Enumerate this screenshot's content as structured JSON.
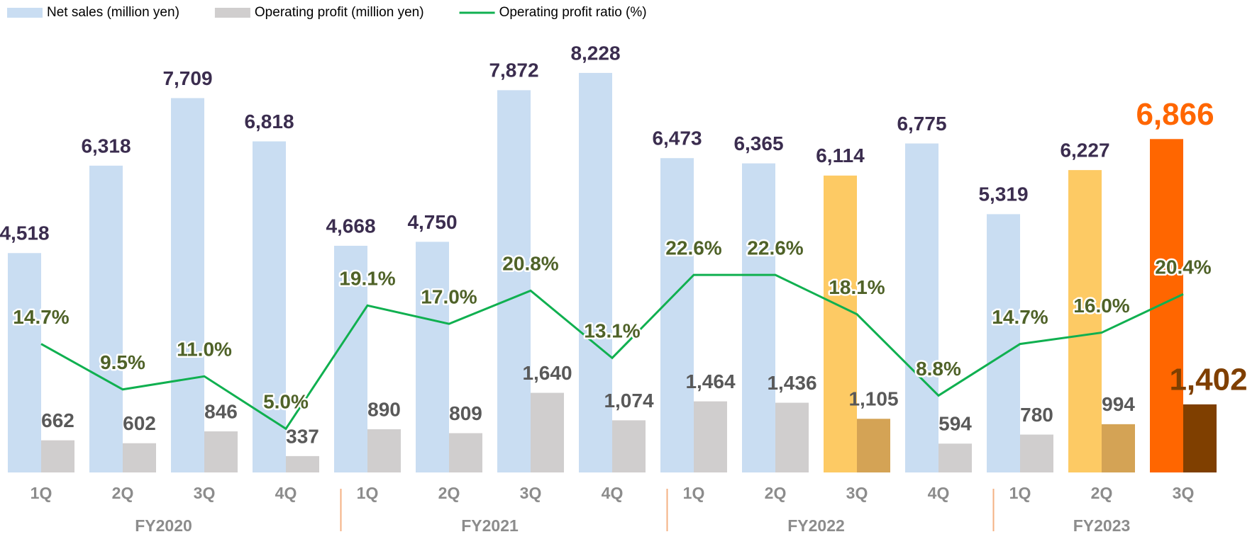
{
  "chart_data": {
    "type": "bar-line",
    "categories": [
      "1Q",
      "2Q",
      "3Q",
      "4Q",
      "1Q",
      "2Q",
      "3Q",
      "4Q",
      "1Q",
      "2Q",
      "3Q",
      "4Q",
      "1Q",
      "2Q",
      "3Q"
    ],
    "groups": [
      {
        "name": "FY2020",
        "size": 4
      },
      {
        "name": "FY2021",
        "size": 4
      },
      {
        "name": "FY2022",
        "size": 4
      },
      {
        "name": "FY2023",
        "size": 3
      }
    ],
    "ylim": [
      0,
      9000
    ],
    "y2lim": [
      0,
      50
    ],
    "series": [
      {
        "name": "Net sales (million yen)",
        "type": "bar",
        "color": "#c9ddf2",
        "colors": [
          "#c9ddf2",
          "#c9ddf2",
          "#c9ddf2",
          "#c9ddf2",
          "#c9ddf2",
          "#c9ddf2",
          "#c9ddf2",
          "#c9ddf2",
          "#c9ddf2",
          "#c9ddf2",
          "#fdca64",
          "#c9ddf2",
          "#c9ddf2",
          "#fdca64",
          "#ff6600"
        ],
        "label_colors": [
          "#3b2d4f",
          "#3b2d4f",
          "#3b2d4f",
          "#3b2d4f",
          "#3b2d4f",
          "#3b2d4f",
          "#3b2d4f",
          "#3b2d4f",
          "#3b2d4f",
          "#3b2d4f",
          "#3b2d4f",
          "#3b2d4f",
          "#3b2d4f",
          "#3b2d4f",
          "#ff6600"
        ],
        "values": [
          4518,
          6318,
          7709,
          6818,
          4668,
          4750,
          7872,
          8228,
          6473,
          6365,
          6114,
          6775,
          5319,
          6227,
          6866
        ],
        "value_labels": [
          "4,518",
          "6,318",
          "7,709",
          "6,818",
          "4,668",
          "4,750",
          "7,872",
          "8,228",
          "6,473",
          "6,365",
          "6,114",
          "6,775",
          "5,319",
          "6,227",
          "6,866"
        ]
      },
      {
        "name": "Operating profit (million yen)",
        "type": "bar",
        "color": "#d0cece",
        "colors": [
          "#d0cece",
          "#d0cece",
          "#d0cece",
          "#d0cece",
          "#d0cece",
          "#d0cece",
          "#d0cece",
          "#d0cece",
          "#d0cece",
          "#d0cece",
          "#d4a355",
          "#d0cece",
          "#d0cece",
          "#d4a355",
          "#7f3f00"
        ],
        "label_colors": [
          "#595959",
          "#595959",
          "#595959",
          "#595959",
          "#595959",
          "#595959",
          "#595959",
          "#595959",
          "#595959",
          "#595959",
          "#595959",
          "#595959",
          "#595959",
          "#595959",
          "#7f3f00"
        ],
        "values": [
          662,
          602,
          846,
          337,
          890,
          809,
          1640,
          1074,
          1464,
          1436,
          1105,
          594,
          780,
          994,
          1402
        ],
        "value_labels": [
          "662",
          "602",
          "846",
          "337",
          "890",
          "809",
          "1,640",
          "1,074",
          "1,464",
          "1,436",
          "1,105",
          "594",
          "780",
          "994",
          "1,402"
        ]
      },
      {
        "name": "Operating profit ratio (%)",
        "type": "line",
        "axis": "y2",
        "color": "#10b050",
        "label_colors": [
          "#4f6228",
          "#4f6228",
          "#4f6228",
          "#4f6228",
          "#4f6228",
          "#4f6228",
          "#4f6228",
          "#4f6228",
          "#4f6228",
          "#4f6228",
          "#4f6228",
          "#4f6228",
          "#4f6228",
          "#4f6228",
          "#4f6228"
        ],
        "values": [
          14.7,
          9.5,
          11.0,
          5.0,
          19.1,
          17.0,
          20.8,
          13.1,
          22.6,
          22.6,
          18.1,
          8.8,
          14.7,
          16.0,
          20.4
        ],
        "value_labels": [
          "14.7%",
          "9.5%",
          "11.0%",
          "5.0%",
          "19.1%",
          "17.0%",
          "20.8%",
          "13.1%",
          "22.6%",
          "22.6%",
          "18.1%",
          "8.8%",
          "14.7%",
          "16.0%",
          "20.4%"
        ]
      }
    ]
  }
}
